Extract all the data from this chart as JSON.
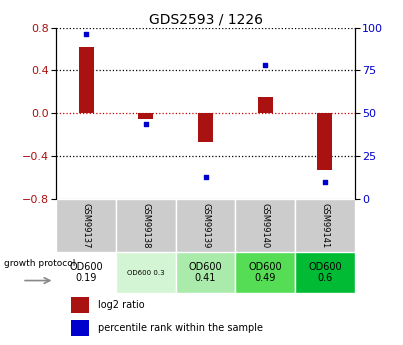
{
  "title": "GDS2593 / 1226",
  "samples": [
    "GSM99137",
    "GSM99138",
    "GSM99139",
    "GSM99140",
    "GSM99141"
  ],
  "log2_ratio": [
    0.62,
    -0.05,
    -0.27,
    0.15,
    -0.53
  ],
  "percentile_rank": [
    96,
    44,
    13,
    78,
    10
  ],
  "ylim_left": [
    -0.8,
    0.8
  ],
  "ylim_right": [
    0,
    100
  ],
  "yticks_left": [
    -0.8,
    -0.4,
    0.0,
    0.4,
    0.8
  ],
  "yticks_right": [
    0,
    25,
    50,
    75,
    100
  ],
  "bar_color": "#aa1111",
  "dot_color": "#0000cc",
  "zero_line_color": "#cc0000",
  "growth_labels": [
    "OD600\n0.19",
    "OD600 0.3",
    "OD600\n0.41",
    "OD600\n0.49",
    "OD600\n0.6"
  ],
  "growth_colors": [
    "#ffffff",
    "#d4f5d4",
    "#aaeaaa",
    "#55dd55",
    "#00bb33"
  ],
  "growth_small_font": [
    false,
    true,
    false,
    false,
    false
  ],
  "legend_bar_label": "log2 ratio",
  "legend_dot_label": "percentile rank within the sample",
  "bar_width": 0.25
}
